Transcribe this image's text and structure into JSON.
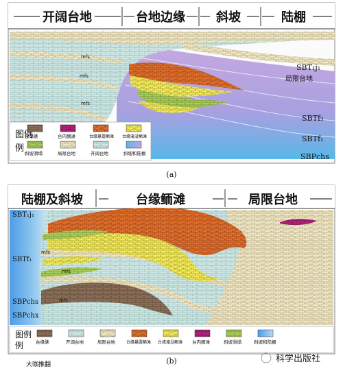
{
  "panel_a": {
    "headers": [
      "开阔台地",
      "台地边缘",
      "斜坡",
      "陆棚"
    ],
    "surfaces": [
      "SBT₁j₁",
      "局限台地",
      "SBTf₃",
      "SBTf₁",
      "SBPchs"
    ],
    "mfs": [
      "mfs",
      "mfs",
      "mfs"
    ],
    "legend_title": "图例",
    "legend": [
      {
        "label": "台缘礁",
        "color": "#8a6e58"
      },
      {
        "label": "台内鲕滩",
        "color": "#b0227a"
      },
      {
        "label": "台缘暴露鲕滩",
        "color": "#e0702c"
      },
      {
        "label": "台缘淹没鲕滩",
        "color": "#f2ea5a"
      },
      {
        "label": "斜坡滑塌",
        "color": "#a8cc58"
      },
      {
        "label": "局限台地",
        "color": "#efe7c2"
      },
      {
        "label": "开阔台地",
        "color": "#cde5e2"
      },
      {
        "label": "斜坡和陆棚",
        "color": "#b89fd8"
      }
    ],
    "caption": "(a)"
  },
  "panel_b": {
    "headers": [
      "陆棚及斜坡",
      "台缘鲕滩",
      "局限台地"
    ],
    "surfaces": [
      "SBT₁j₁",
      "SBTf₁",
      "SBPchs",
      "SBPchx"
    ],
    "mfs": [
      "mfs",
      "mfs",
      "mfs"
    ],
    "legend_title": "图例",
    "legend": [
      {
        "label": "台缘礁",
        "color": "#8a6e58"
      },
      {
        "label": "开阔台地",
        "color": "#cde5e2"
      },
      {
        "label": "局限台地",
        "color": "#efe7c2"
      },
      {
        "label": "台缘暴露鲕滩",
        "color": "#e0702c"
      },
      {
        "label": "台缘淹没鲕滩",
        "color": "#f2ea5a"
      },
      {
        "label": "台内鲕滩",
        "color": "#b0227a"
      },
      {
        "label": "斜坡滑塌",
        "color": "#a8cc58"
      },
      {
        "label": "斜坡和陆棚",
        "color": "#8db8e8"
      }
    ],
    "caption": "(b)"
  },
  "watermark_left": "大咖推翻",
  "watermark_right": "科学出版社"
}
